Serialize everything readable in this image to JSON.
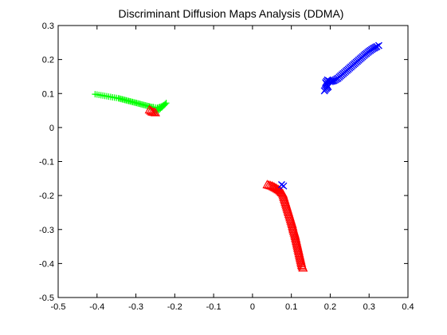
{
  "chart_data": {
    "type": "scatter",
    "title": "Discriminant Diffusion Maps Analysis (DDMA)",
    "xlabel": "",
    "ylabel": "",
    "xlim": [
      -0.5,
      0.4
    ],
    "ylim": [
      -0.5,
      0.3
    ],
    "x_ticks": [
      -0.5,
      -0.4,
      -0.3,
      -0.2,
      -0.1,
      0,
      0.1,
      0.2,
      0.3,
      0.4
    ],
    "x_tick_labels": [
      "-0.5",
      "-0.4",
      "-0.3",
      "-0.2",
      "-0.1",
      "0",
      "0.1",
      "0.2",
      "0.3",
      "0.4"
    ],
    "y_ticks": [
      -0.5,
      -0.4,
      -0.3,
      -0.2,
      -0.1,
      0,
      0.1,
      0.2,
      0.3
    ],
    "y_tick_labels": [
      "-0.5",
      "-0.4",
      "-0.3",
      "-0.2",
      "-0.1",
      "0",
      "0.1",
      "0.2",
      "0.3"
    ],
    "grid": false,
    "legend": "none",
    "series": [
      {
        "color": "#00ff00",
        "marker": "plus",
        "points": [
          [
            -0.405,
            0.098
          ],
          [
            -0.395,
            0.096
          ],
          [
            -0.385,
            0.094
          ],
          [
            -0.375,
            0.092
          ],
          [
            -0.365,
            0.09
          ],
          [
            -0.355,
            0.088
          ],
          [
            -0.345,
            0.086
          ],
          [
            -0.335,
            0.083
          ],
          [
            -0.325,
            0.08
          ],
          [
            -0.315,
            0.077
          ],
          [
            -0.305,
            0.074
          ],
          [
            -0.295,
            0.071
          ],
          [
            -0.285,
            0.068
          ],
          [
            -0.275,
            0.065
          ],
          [
            -0.268,
            0.063
          ],
          [
            -0.262,
            0.061
          ],
          [
            -0.255,
            0.06
          ],
          [
            -0.245,
            0.058
          ],
          [
            -0.235,
            0.062
          ],
          [
            -0.228,
            0.066
          ],
          [
            -0.222,
            0.072
          ],
          [
            -0.24,
            0.052
          ],
          [
            -0.25,
            0.048
          ]
        ]
      },
      {
        "color": "#ff0000",
        "marker": "triangle",
        "points": [
          [
            -0.265,
            0.052
          ],
          [
            -0.258,
            0.046
          ],
          [
            -0.25,
            0.044
          ],
          [
            0.038,
            -0.168
          ],
          [
            0.05,
            -0.172
          ],
          [
            0.06,
            -0.178
          ],
          [
            0.07,
            -0.185
          ],
          [
            0.078,
            -0.195
          ],
          [
            0.082,
            -0.21
          ],
          [
            0.086,
            -0.225
          ],
          [
            0.09,
            -0.24
          ],
          [
            0.094,
            -0.255
          ],
          [
            0.098,
            -0.27
          ],
          [
            0.102,
            -0.285
          ],
          [
            0.105,
            -0.3
          ],
          [
            0.109,
            -0.315
          ],
          [
            0.112,
            -0.33
          ],
          [
            0.115,
            -0.345
          ],
          [
            0.118,
            -0.36
          ],
          [
            0.121,
            -0.375
          ],
          [
            0.124,
            -0.39
          ],
          [
            0.127,
            -0.405
          ],
          [
            0.13,
            -0.413
          ]
        ]
      },
      {
        "color": "#0000ff",
        "marker": "x",
        "points": [
          [
            0.185,
            0.108
          ],
          [
            0.19,
            0.115
          ],
          [
            0.195,
            0.12
          ],
          [
            0.188,
            0.132
          ],
          [
            0.193,
            0.14
          ],
          [
            0.2,
            0.135
          ],
          [
            0.21,
            0.138
          ],
          [
            0.22,
            0.145
          ],
          [
            0.23,
            0.155
          ],
          [
            0.24,
            0.165
          ],
          [
            0.25,
            0.175
          ],
          [
            0.26,
            0.185
          ],
          [
            0.27,
            0.195
          ],
          [
            0.28,
            0.205
          ],
          [
            0.29,
            0.215
          ],
          [
            0.3,
            0.224
          ],
          [
            0.31,
            0.232
          ],
          [
            0.32,
            0.238
          ],
          [
            0.325,
            0.241
          ],
          [
            0.075,
            -0.168
          ],
          [
            0.08,
            -0.172
          ]
        ]
      }
    ]
  }
}
